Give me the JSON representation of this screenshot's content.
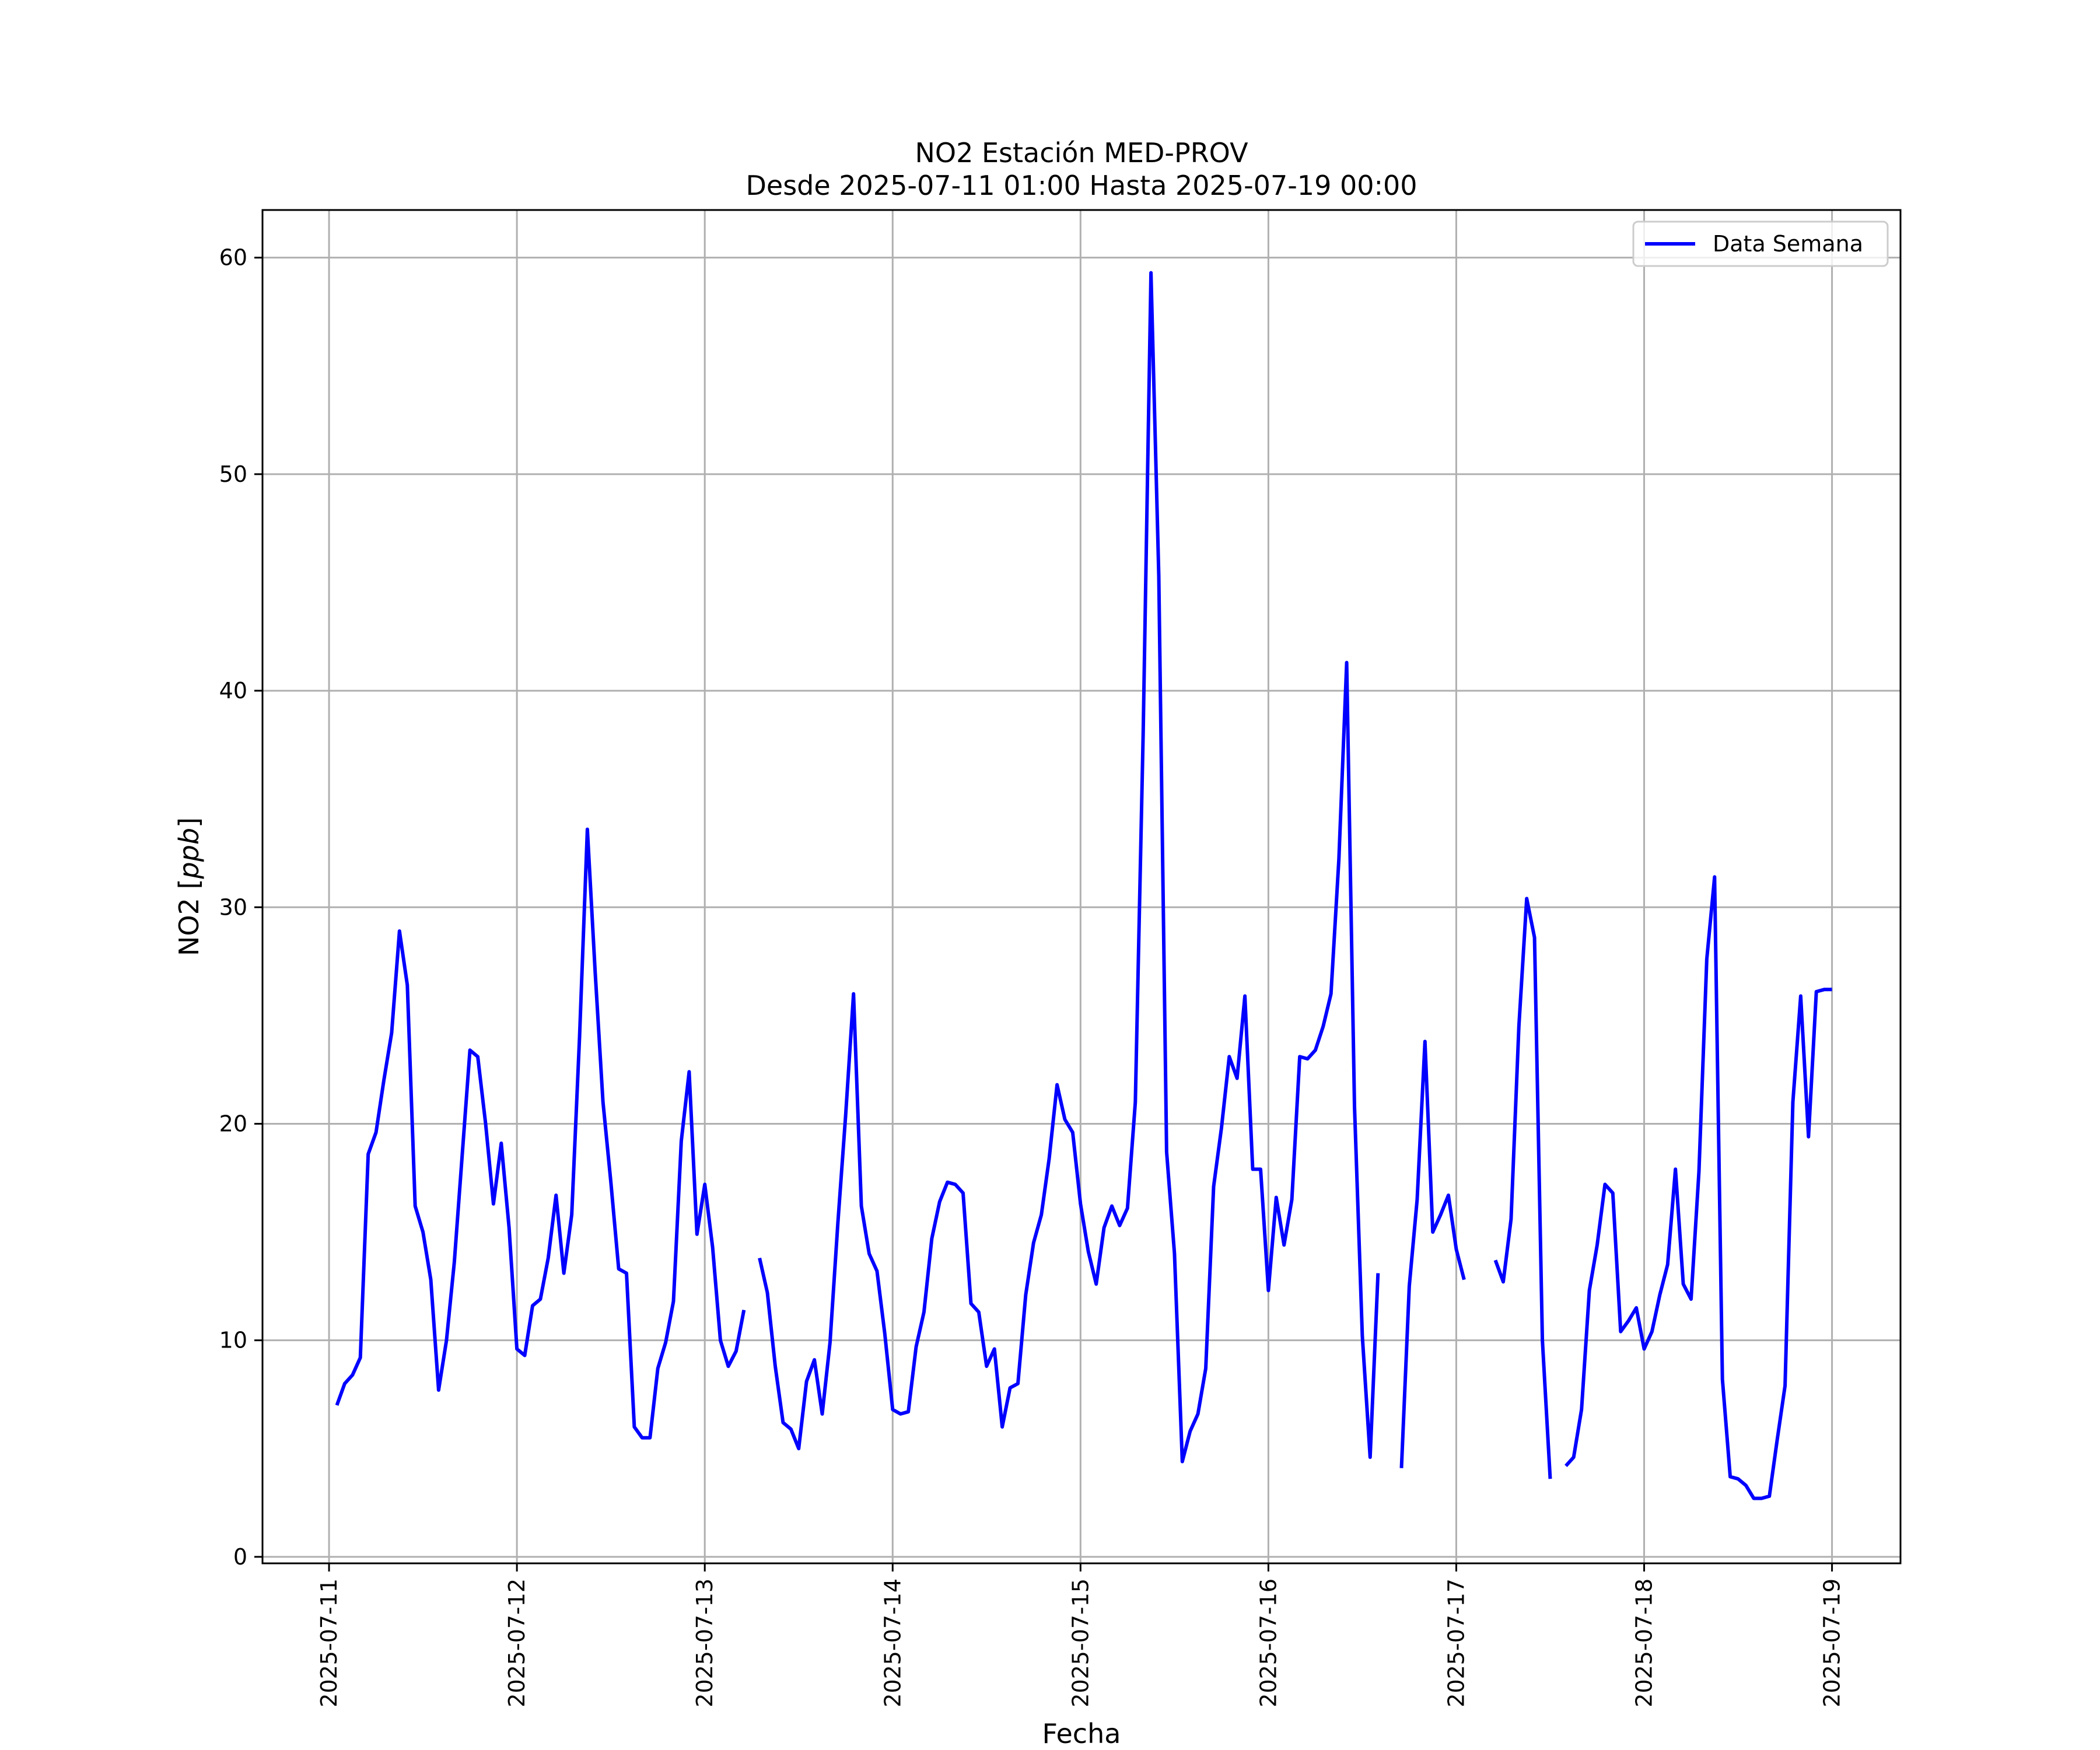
{
  "chart_data": {
    "type": "line",
    "title": "NO2 Estación MED-PROV",
    "subtitle": "Desde 2025-07-11 01:00 Hasta 2025-07-19 00:00",
    "xlabel": "Fecha",
    "ylabel_main": "NO2 [",
    "ylabel_unit": "ppb",
    "ylabel_end": "]",
    "x_type": "datetime",
    "xlim": [
      "2025-07-10 15:30",
      "2025-07-19 08:45"
    ],
    "ylim": [
      -0.3,
      62.2
    ],
    "x_ticks": [
      "2025-07-11",
      "2025-07-12",
      "2025-07-13",
      "2025-07-14",
      "2025-07-15",
      "2025-07-16",
      "2025-07-17",
      "2025-07-18",
      "2025-07-19"
    ],
    "y_ticks": [
      0,
      10,
      20,
      30,
      40,
      50,
      60
    ],
    "grid": true,
    "legend_position": "upper right",
    "series": [
      {
        "name": "Data Semana",
        "color": "#0000ff",
        "points": [
          [
            "2025-07-11 01:00",
            7.0
          ],
          [
            "2025-07-11 02:00",
            8.0
          ],
          [
            "2025-07-11 03:00",
            8.4
          ],
          [
            "2025-07-11 04:00",
            9.2
          ],
          [
            "2025-07-11 05:00",
            18.6
          ],
          [
            "2025-07-11 06:00",
            19.6
          ],
          [
            "2025-07-11 07:00",
            22.0
          ],
          [
            "2025-07-11 08:00",
            24.2
          ],
          [
            "2025-07-11 09:00",
            28.9
          ],
          [
            "2025-07-11 10:00",
            26.4
          ],
          [
            "2025-07-11 11:00",
            16.2
          ],
          [
            "2025-07-11 12:00",
            15.0
          ],
          [
            "2025-07-11 13:00",
            12.8
          ],
          [
            "2025-07-11 14:00",
            7.7
          ],
          [
            "2025-07-11 15:00",
            10.0
          ],
          [
            "2025-07-11 16:00",
            13.6
          ],
          [
            "2025-07-11 17:00",
            18.5
          ],
          [
            "2025-07-11 18:00",
            23.4
          ],
          [
            "2025-07-11 19:00",
            23.1
          ],
          [
            "2025-07-11 20:00",
            20.0
          ],
          [
            "2025-07-11 21:00",
            16.3
          ],
          [
            "2025-07-11 22:00",
            19.1
          ],
          [
            "2025-07-11 23:00",
            15.2
          ],
          [
            "2025-07-12 00:00",
            9.6
          ],
          [
            "2025-07-12 01:00",
            9.3
          ],
          [
            "2025-07-12 02:00",
            11.6
          ],
          [
            "2025-07-12 03:00",
            11.9
          ],
          [
            "2025-07-12 04:00",
            13.8
          ],
          [
            "2025-07-12 05:00",
            16.7
          ],
          [
            "2025-07-12 06:00",
            13.1
          ],
          [
            "2025-07-12 07:00",
            15.8
          ],
          [
            "2025-07-12 08:00",
            24.0
          ],
          [
            "2025-07-12 09:00",
            33.6
          ],
          [
            "2025-07-12 10:00",
            27.0
          ],
          [
            "2025-07-12 11:00",
            21.0
          ],
          [
            "2025-07-12 12:00",
            17.3
          ],
          [
            "2025-07-12 13:00",
            13.3
          ],
          [
            "2025-07-12 14:00",
            13.1
          ],
          [
            "2025-07-12 15:00",
            6.0
          ],
          [
            "2025-07-12 16:00",
            5.5
          ],
          [
            "2025-07-12 17:00",
            5.5
          ],
          [
            "2025-07-12 18:00",
            8.7
          ],
          [
            "2025-07-12 19:00",
            9.9
          ],
          [
            "2025-07-12 20:00",
            11.8
          ],
          [
            "2025-07-12 21:00",
            19.2
          ],
          [
            "2025-07-12 22:00",
            22.4
          ],
          [
            "2025-07-12 23:00",
            14.9
          ],
          [
            "2025-07-13 00:00",
            17.2
          ],
          [
            "2025-07-13 01:00",
            14.3
          ],
          [
            "2025-07-13 02:00",
            10.0
          ],
          [
            "2025-07-13 03:00",
            8.8
          ],
          [
            "2025-07-13 04:00",
            9.5
          ],
          [
            "2025-07-13 05:00",
            11.4
          ],
          null,
          [
            "2025-07-13 07:00",
            13.8
          ],
          [
            "2025-07-13 08:00",
            12.2
          ],
          [
            "2025-07-13 09:00",
            8.8
          ],
          [
            "2025-07-13 10:00",
            6.2
          ],
          [
            "2025-07-13 11:00",
            5.9
          ],
          [
            "2025-07-13 12:00",
            5.0
          ],
          [
            "2025-07-13 13:00",
            8.1
          ],
          [
            "2025-07-13 14:00",
            9.1
          ],
          [
            "2025-07-13 15:00",
            6.6
          ],
          [
            "2025-07-13 16:00",
            9.9
          ],
          [
            "2025-07-13 17:00",
            15.4
          ],
          [
            "2025-07-13 18:00",
            20.4
          ],
          [
            "2025-07-13 19:00",
            26.0
          ],
          [
            "2025-07-13 20:00",
            16.2
          ],
          [
            "2025-07-13 21:00",
            14.0
          ],
          [
            "2025-07-13 22:00",
            13.2
          ],
          [
            "2025-07-13 23:00",
            10.3
          ],
          [
            "2025-07-14 00:00",
            6.8
          ],
          [
            "2025-07-14 01:00",
            6.6
          ],
          [
            "2025-07-14 02:00",
            6.7
          ],
          [
            "2025-07-14 03:00",
            9.7
          ],
          [
            "2025-07-14 04:00",
            11.3
          ],
          [
            "2025-07-14 05:00",
            14.7
          ],
          [
            "2025-07-14 06:00",
            16.4
          ],
          [
            "2025-07-14 07:00",
            17.3
          ],
          [
            "2025-07-14 08:00",
            17.2
          ],
          [
            "2025-07-14 09:00",
            16.8
          ],
          [
            "2025-07-14 10:00",
            11.7
          ],
          [
            "2025-07-14 11:00",
            11.3
          ],
          [
            "2025-07-14 12:00",
            8.8
          ],
          [
            "2025-07-14 13:00",
            9.6
          ],
          [
            "2025-07-14 14:00",
            6.0
          ],
          [
            "2025-07-14 15:00",
            7.8
          ],
          [
            "2025-07-14 16:00",
            8.0
          ],
          [
            "2025-07-14 17:00",
            12.1
          ],
          [
            "2025-07-14 18:00",
            14.5
          ],
          [
            "2025-07-14 19:00",
            15.8
          ],
          [
            "2025-07-14 20:00",
            18.4
          ],
          [
            "2025-07-14 21:00",
            21.8
          ],
          [
            "2025-07-14 22:00",
            20.2
          ],
          [
            "2025-07-14 23:00",
            19.6
          ],
          [
            "2025-07-15 00:00",
            16.3
          ],
          [
            "2025-07-15 01:00",
            14.1
          ],
          [
            "2025-07-15 02:00",
            12.6
          ],
          [
            "2025-07-15 03:00",
            15.2
          ],
          [
            "2025-07-15 04:00",
            16.2
          ],
          [
            "2025-07-15 05:00",
            15.3
          ],
          [
            "2025-07-15 06:00",
            16.1
          ],
          [
            "2025-07-15 07:00",
            21.0
          ],
          [
            "2025-07-15 08:00",
            38.0
          ],
          [
            "2025-07-15 09:00",
            59.3
          ],
          [
            "2025-07-15 10:00",
            45.3
          ],
          [
            "2025-07-15 11:00",
            18.7
          ],
          [
            "2025-07-15 12:00",
            14.0
          ],
          [
            "2025-07-15 13:00",
            4.4
          ],
          [
            "2025-07-15 14:00",
            5.8
          ],
          [
            "2025-07-15 15:00",
            6.6
          ],
          [
            "2025-07-15 16:00",
            8.7
          ],
          [
            "2025-07-15 17:00",
            17.1
          ],
          [
            "2025-07-15 18:00",
            19.8
          ],
          [
            "2025-07-15 19:00",
            23.1
          ],
          [
            "2025-07-15 20:00",
            22.1
          ],
          [
            "2025-07-15 21:00",
            25.9
          ],
          [
            "2025-07-15 22:00",
            17.9
          ],
          [
            "2025-07-15 23:00",
            17.9
          ],
          [
            "2025-07-16 00:00",
            12.3
          ],
          [
            "2025-07-16 01:00",
            16.6
          ],
          [
            "2025-07-16 02:00",
            14.4
          ],
          [
            "2025-07-16 03:00",
            16.5
          ],
          [
            "2025-07-16 04:00",
            23.1
          ],
          [
            "2025-07-16 05:00",
            23.0
          ],
          [
            "2025-07-16 06:00",
            23.4
          ],
          [
            "2025-07-16 07:00",
            24.5
          ],
          [
            "2025-07-16 08:00",
            26.0
          ],
          [
            "2025-07-16 09:00",
            32.2
          ],
          [
            "2025-07-16 10:00",
            41.3
          ],
          [
            "2025-07-16 11:00",
            20.8
          ],
          [
            "2025-07-16 12:00",
            10.2
          ],
          [
            "2025-07-16 13:00",
            4.6
          ],
          [
            "2025-07-16 14:00",
            13.1
          ],
          null,
          [
            "2025-07-16 17:00",
            4.1
          ],
          [
            "2025-07-16 18:00",
            12.5
          ],
          [
            "2025-07-16 19:00",
            16.5
          ],
          [
            "2025-07-16 20:00",
            23.8
          ],
          [
            "2025-07-16 21:00",
            15.0
          ],
          [
            "2025-07-16 22:00",
            15.8
          ],
          [
            "2025-07-16 23:00",
            16.7
          ],
          [
            "2025-07-17 00:00",
            14.2
          ],
          [
            "2025-07-17 01:00",
            12.8
          ],
          null,
          [
            "2025-07-17 05:00",
            13.7
          ],
          [
            "2025-07-17 06:00",
            12.7
          ],
          [
            "2025-07-17 07:00",
            15.6
          ],
          [
            "2025-07-17 08:00",
            24.5
          ],
          [
            "2025-07-17 09:00",
            30.4
          ],
          [
            "2025-07-17 10:00",
            28.6
          ],
          [
            "2025-07-17 11:00",
            10.0
          ],
          [
            "2025-07-17 12:00",
            3.6
          ],
          null,
          [
            "2025-07-17 14:00",
            4.2
          ],
          [
            "2025-07-17 15:00",
            4.6
          ],
          [
            "2025-07-17 16:00",
            6.8
          ],
          [
            "2025-07-17 17:00",
            12.3
          ],
          [
            "2025-07-17 18:00",
            14.4
          ],
          [
            "2025-07-17 19:00",
            17.2
          ],
          [
            "2025-07-17 20:00",
            16.8
          ],
          [
            "2025-07-17 21:00",
            10.4
          ],
          [
            "2025-07-17 22:00",
            10.9
          ],
          [
            "2025-07-17 23:00",
            11.5
          ],
          [
            "2025-07-18 00:00",
            9.6
          ],
          [
            "2025-07-18 01:00",
            10.4
          ],
          [
            "2025-07-18 02:00",
            12.1
          ],
          [
            "2025-07-18 03:00",
            13.5
          ],
          [
            "2025-07-18 04:00",
            17.9
          ],
          [
            "2025-07-18 05:00",
            12.6
          ],
          [
            "2025-07-18 06:00",
            11.9
          ],
          [
            "2025-07-18 07:00",
            17.8
          ],
          [
            "2025-07-18 08:00",
            27.6
          ],
          [
            "2025-07-18 09:00",
            31.4
          ],
          [
            "2025-07-18 10:00",
            8.2
          ],
          [
            "2025-07-18 11:00",
            3.7
          ],
          [
            "2025-07-18 12:00",
            3.6
          ],
          [
            "2025-07-18 13:00",
            3.3
          ],
          [
            "2025-07-18 14:00",
            2.7
          ],
          [
            "2025-07-18 15:00",
            2.7
          ],
          [
            "2025-07-18 16:00",
            2.8
          ],
          [
            "2025-07-18 17:00",
            5.4
          ],
          [
            "2025-07-18 18:00",
            7.9
          ],
          [
            "2025-07-18 19:00",
            21.0
          ],
          [
            "2025-07-18 20:00",
            25.9
          ],
          [
            "2025-07-18 21:00",
            19.4
          ],
          [
            "2025-07-18 22:00",
            26.1
          ],
          [
            "2025-07-18 23:00",
            26.2
          ],
          [
            "2025-07-19 00:00",
            26.2
          ]
        ]
      }
    ]
  }
}
